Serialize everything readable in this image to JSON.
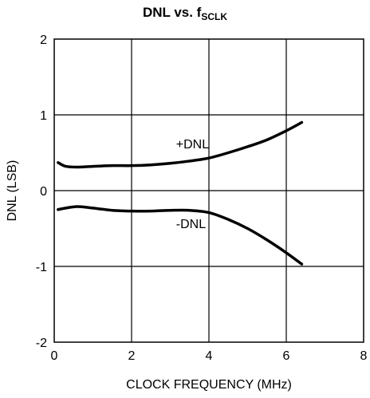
{
  "chart_data": {
    "type": "line",
    "title_main": "DNL vs. f",
    "title_sub": "SCLK",
    "xlabel": "CLOCK FREQUENCY (MHz)",
    "ylabel": "DNL (LSB)",
    "xlim": [
      0,
      8
    ],
    "ylim": [
      -2,
      2
    ],
    "xticks": [
      0,
      2,
      4,
      6,
      8
    ],
    "yticks": [
      -2,
      -1,
      0,
      1,
      2
    ],
    "grid": true,
    "series": [
      {
        "name": "+DNL",
        "x": [
          0.1,
          0.3,
          0.6,
          1.0,
          1.5,
          2.0,
          2.5,
          3.0,
          3.5,
          4.0,
          4.5,
          5.0,
          5.5,
          6.0,
          6.4
        ],
        "y": [
          0.37,
          0.32,
          0.31,
          0.32,
          0.33,
          0.33,
          0.34,
          0.36,
          0.39,
          0.43,
          0.5,
          0.58,
          0.67,
          0.79,
          0.9
        ]
      },
      {
        "name": "-DNL",
        "x": [
          0.1,
          0.3,
          0.6,
          1.0,
          1.5,
          2.0,
          2.5,
          3.0,
          3.5,
          4.0,
          4.5,
          5.0,
          5.5,
          6.0,
          6.4
        ],
        "y": [
          -0.25,
          -0.23,
          -0.21,
          -0.23,
          -0.26,
          -0.27,
          -0.27,
          -0.26,
          -0.26,
          -0.29,
          -0.38,
          -0.5,
          -0.65,
          -0.82,
          -0.97
        ]
      }
    ],
    "annotations": [
      {
        "text": "+DNL",
        "x": 3.15,
        "y": 0.62
      },
      {
        "text": "-DNL",
        "x": 3.15,
        "y": -0.43
      }
    ]
  }
}
